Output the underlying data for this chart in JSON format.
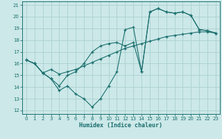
{
  "xlabel": "Humidex (Indice chaleur)",
  "background_color": "#cce8e8",
  "grid_color": "#aacfcf",
  "line_color": "#1a6e6e",
  "xlim": [
    -0.5,
    23.5
  ],
  "ylim": [
    11.7,
    21.3
  ],
  "xticks": [
    0,
    1,
    2,
    3,
    4,
    5,
    6,
    7,
    8,
    9,
    10,
    11,
    12,
    13,
    14,
    15,
    16,
    17,
    18,
    19,
    20,
    21,
    22,
    23
  ],
  "yticks": [
    12,
    13,
    14,
    15,
    16,
    17,
    18,
    19,
    20,
    21
  ],
  "line1_x": [
    0,
    1,
    2,
    3,
    4,
    5,
    6,
    7,
    8,
    9,
    10,
    11,
    12,
    13,
    14,
    15,
    16,
    17,
    18,
    19,
    20,
    21,
    22,
    23
  ],
  "line1_y": [
    16.3,
    16.0,
    15.2,
    14.7,
    13.7,
    14.1,
    13.4,
    13.0,
    12.3,
    13.0,
    14.1,
    15.3,
    18.9,
    19.1,
    15.3,
    20.4,
    20.7,
    20.4,
    20.3,
    20.4,
    20.1,
    18.9,
    18.8,
    18.6
  ],
  "line2_x": [
    0,
    1,
    2,
    3,
    4,
    5,
    6,
    7,
    8,
    9,
    10,
    11,
    12,
    13,
    14,
    15,
    16,
    17,
    18,
    19,
    20,
    21,
    22,
    23
  ],
  "line2_y": [
    16.3,
    16.0,
    15.2,
    15.5,
    15.1,
    15.3,
    15.5,
    15.8,
    16.1,
    16.4,
    16.7,
    17.0,
    17.3,
    17.5,
    17.7,
    17.9,
    18.1,
    18.3,
    18.4,
    18.5,
    18.6,
    18.7,
    18.7,
    18.6
  ],
  "line3_x": [
    0,
    1,
    2,
    3,
    4,
    5,
    6,
    7,
    8,
    9,
    10,
    11,
    12,
    13,
    14,
    15,
    16,
    17,
    18,
    19,
    20,
    21,
    22,
    23
  ],
  "line3_y": [
    16.3,
    16.0,
    15.2,
    14.7,
    14.1,
    15.0,
    15.3,
    16.0,
    17.0,
    17.5,
    17.7,
    17.8,
    17.5,
    17.8,
    15.3,
    20.4,
    20.7,
    20.4,
    20.3,
    20.4,
    20.1,
    18.9,
    18.8,
    18.6
  ]
}
